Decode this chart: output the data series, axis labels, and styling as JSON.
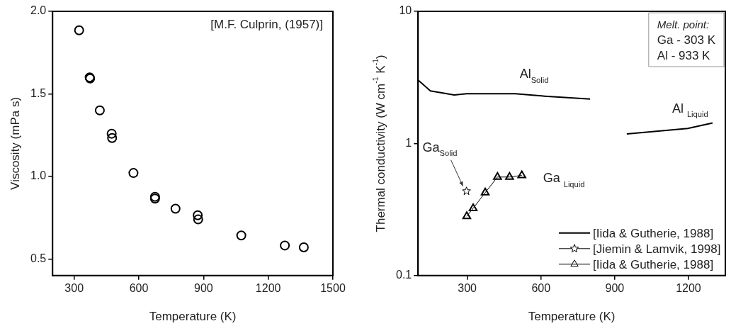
{
  "chart_data": [
    {
      "type": "scatter",
      "xlabel": "Temperature (K)",
      "ylabel": "Viscosity (mPa s)",
      "color": "#000000",
      "marker": "circle",
      "x": [
        323,
        372,
        374,
        419,
        474,
        476,
        575,
        675,
        675,
        770,
        873,
        875,
        1075,
        1277,
        1365
      ],
      "values": [
        1.885,
        1.6,
        1.593,
        1.4,
        1.259,
        1.233,
        1.021,
        0.877,
        0.866,
        0.805,
        0.765,
        0.74,
        0.643,
        0.582,
        0.571
      ],
      "xlim": [
        200,
        1500
      ],
      "xticks": [
        300,
        600,
        900,
        1200,
        1500
      ],
      "ylim": [
        0.4,
        2.0
      ],
      "yticks": [
        {
          "value": 0.5,
          "label": "0.5"
        },
        {
          "value": 1,
          "label": "1.0"
        },
        {
          "value": 1.5,
          "label": "1.5"
        },
        {
          "value": 2,
          "label": "2.0"
        }
      ],
      "annotations": [
        "[M.F. Culprin, (1957)]"
      ]
    },
    {
      "type": "line",
      "xlabel": "Temperature (K)",
      "ylabel": "Thermal conductivity (W cm$^{-1}$ K$^{-1}$)",
      "log": "y",
      "legend": "bottom right",
      "xlim": [
        100,
        1350
      ],
      "xticks": [
        300,
        600,
        900,
        1200
      ],
      "ylim": [
        0.1,
        10
      ],
      "yticks": [
        0.1,
        1,
        10
      ],
      "series": [
        {
          "name": "[Iida & Gutherie, 1988]",
          "marker": "none",
          "color": "#000000",
          "x": [
            100,
            150,
            247,
            297,
            496,
            615,
            800,
            875,
            949,
            1197,
            1298
          ],
          "values": [
            3.02,
            2.5,
            2.33,
            2.38,
            2.38,
            2.28,
            2.17,
            null,
            1.18,
            1.3,
            1.43
          ]
        },
        {
          "name": "[Jiemin & Lamvik, 1998]",
          "marker": "star",
          "color": "#000000",
          "x": [
            297
          ],
          "values": [
            0.435
          ]
        },
        {
          "name": "[Iida & Gutherie, 1988]",
          "marker": "triangle",
          "color": "#000000",
          "x": [
            298,
            324,
            373,
            423,
            472,
            522
          ],
          "values": [
            0.281,
            0.323,
            0.424,
            0.557,
            0.557,
            0.573
          ]
        }
      ],
      "annotations": [
        "Melt. point:",
        "Ga - 303 K",
        "Al - 933 K",
        {
          "text": "Al$_{Solid}$",
          "x": 496,
          "y": 2.38
        },
        {
          "text": "Al $_{Liquid}$",
          "x": 1197,
          "y": 1.3
        },
        {
          "text": "Ga$_{Solid}$",
          "x": 297,
          "y": 0.435
        },
        {
          "text": "Ga $_{Liquid}$",
          "x": 522,
          "y": 0.573
        }
      ]
    }
  ]
}
